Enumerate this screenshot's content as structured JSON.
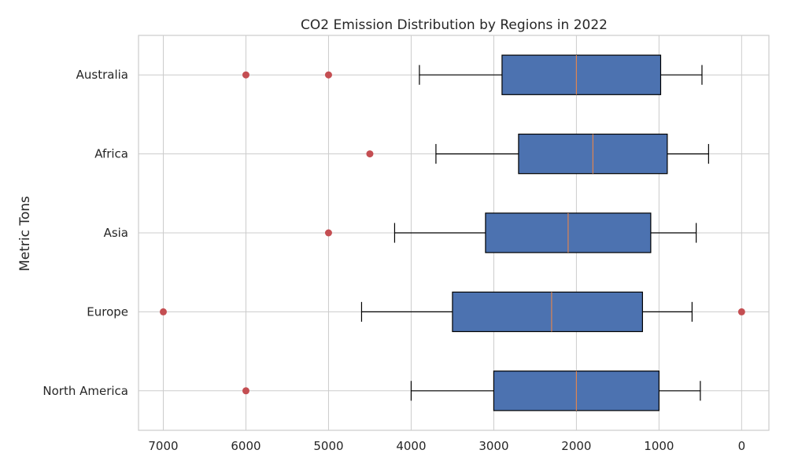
{
  "chart_data": {
    "type": "boxplot",
    "orientation": "horizontal",
    "title": "CO2 Emission Distribution by Regions in 2022",
    "ylabel": "Metric Tons",
    "xlabel": "",
    "x_inverted": true,
    "xlim": [
      7300,
      -330
    ],
    "x_ticks": [
      7000,
      6000,
      5000,
      4000,
      3000,
      2000,
      1000,
      0
    ],
    "grid": true,
    "colors": {
      "box": "#4c72b0",
      "median": "#dd8452",
      "outlier": "#c44e52",
      "whisker": "#000000"
    },
    "categories": [
      "North America",
      "Europe",
      "Asia",
      "Africa",
      "Australia"
    ],
    "series": [
      {
        "category": "North America",
        "min": 500,
        "q1": 1000,
        "median": 2000,
        "q3": 3000,
        "max": 4000,
        "outliers": [
          6000
        ]
      },
      {
        "category": "Europe",
        "min": 600,
        "q1": 1200,
        "median": 2300,
        "q3": 3500,
        "max": 4600,
        "outliers": [
          7000,
          0
        ]
      },
      {
        "category": "Asia",
        "min": 550,
        "q1": 1100,
        "median": 2100,
        "q3": 3100,
        "max": 4200,
        "outliers": [
          5000
        ]
      },
      {
        "category": "Africa",
        "min": 400,
        "q1": 900,
        "median": 1800,
        "q3": 2700,
        "max": 3700,
        "outliers": [
          4500
        ]
      },
      {
        "category": "Australia",
        "min": 480,
        "q1": 980,
        "median": 2000,
        "q3": 2900,
        "max": 3900,
        "outliers": [
          6000,
          5000
        ]
      }
    ]
  }
}
